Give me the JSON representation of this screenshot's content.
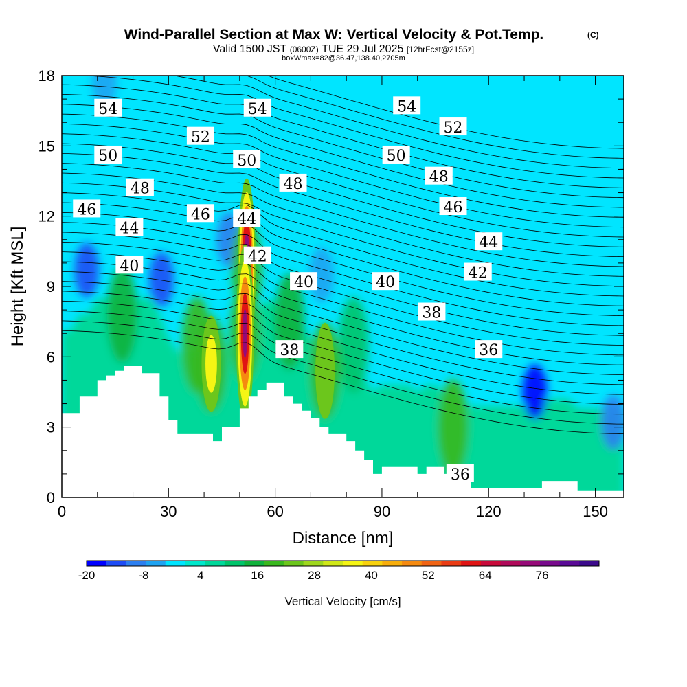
{
  "chart_data": {
    "type": "heatmap",
    "title": "Wind-Parallel Section at Max W: Vertical Velocity & Pot.Temp.",
    "title_mark": "(C)",
    "subtitle_parts": {
      "valid": "Valid 1500 JST",
      "utc": "(0600Z)",
      "date": "TUE 29 Jul 2025",
      "fcst": "[12hrFcst@2155z]"
    },
    "subtitle2": "boxWmax=82@36.47,138.40,2705m",
    "xlabel": "Distance [nm]",
    "ylabel": "Height [Kft MSL]",
    "xlim": [
      0,
      158
    ],
    "ylim": [
      0,
      18
    ],
    "x_ticks": [
      {
        "value": 0,
        "label": "0"
      },
      {
        "value": 30,
        "label": "30"
      },
      {
        "value": 60,
        "label": "60"
      },
      {
        "value": 90,
        "label": "90"
      },
      {
        "value": 120,
        "label": "120"
      },
      {
        "value": 150,
        "label": "150"
      }
    ],
    "y_ticks": [
      {
        "value": 0,
        "label": "0"
      },
      {
        "value": 3,
        "label": "3"
      },
      {
        "value": 6,
        "label": "6"
      },
      {
        "value": 9,
        "label": "9"
      },
      {
        "value": 12,
        "label": "12"
      },
      {
        "value": 15,
        "label": "15"
      },
      {
        "value": 18,
        "label": "18"
      }
    ],
    "colorbar": {
      "label": "Vertical Velocity [cm/s]",
      "min": -20,
      "max": 88,
      "step": 4,
      "tick_labels": [
        "-20",
        "-8",
        "4",
        "16",
        "28",
        "40",
        "52",
        "64",
        "76"
      ],
      "tick_values": [
        -20,
        -8,
        4,
        16,
        28,
        40,
        52,
        64,
        76
      ],
      "colors": [
        "#0000ff",
        "#1e4cf5",
        "#2c7ff0",
        "#1fa3f2",
        "#00e5ff",
        "#00e8cc",
        "#00d89a",
        "#00c46a",
        "#10b23c",
        "#39b81e",
        "#6cc61c",
        "#9fd81e",
        "#d0e818",
        "#f5f514",
        "#f8d20e",
        "#f8ae0c",
        "#f58a10",
        "#f16414",
        "#ea3c14",
        "#e01414",
        "#c80a3a",
        "#b00a5a",
        "#960a78",
        "#780a8c",
        "#5a0a96",
        "#3c0a8c"
      ]
    },
    "vertical_velocity_max": {
      "x": 52,
      "y": 9.8,
      "value": 82
    },
    "updraft_cells": [
      {
        "x": 52,
        "y": 9.8,
        "value": 82
      },
      {
        "x": 51.5,
        "y": 7.0,
        "value": 70
      },
      {
        "x": 42,
        "y": 5.7,
        "value": 40
      },
      {
        "x": 38,
        "y": 6.5,
        "value": 16
      },
      {
        "x": 17,
        "y": 7.8,
        "value": 12
      },
      {
        "x": 74,
        "y": 5.4,
        "value": 20
      },
      {
        "x": 110,
        "y": 3.0,
        "value": 18
      },
      {
        "x": 64,
        "y": 7.5,
        "value": 12
      },
      {
        "x": 82,
        "y": 6.5,
        "value": 10
      }
    ],
    "downdraft_cells": [
      {
        "x": 7,
        "y": 9.7,
        "value": -14
      },
      {
        "x": 28,
        "y": 9.3,
        "value": -14
      },
      {
        "x": 133,
        "y": 4.5,
        "value": -20
      },
      {
        "x": 47,
        "y": 11.0,
        "value": -10
      },
      {
        "x": 12,
        "y": 17.8,
        "value": -8
      },
      {
        "x": 73,
        "y": 9.5,
        "value": -8
      },
      {
        "x": 155,
        "y": 3.2,
        "value": -10
      }
    ],
    "terrain": {
      "x": [
        0,
        2.5,
        5,
        7.5,
        10,
        12.5,
        15,
        17.5,
        20,
        22.5,
        25,
        27.5,
        30,
        32.5,
        35,
        37.5,
        40,
        42.5,
        45,
        47.5,
        50,
        52.5,
        55,
        57.5,
        60,
        62.5,
        65,
        67.5,
        70,
        72.5,
        75,
        77.5,
        80,
        82.5,
        85,
        87.5,
        90,
        92.5,
        95,
        97.5,
        100,
        102.5,
        105,
        107.5,
        110,
        112.5,
        115,
        117.5,
        120,
        122.5,
        125,
        127.5,
        130,
        132.5,
        135,
        137.5,
        140,
        142.5,
        145,
        147.5,
        150,
        152.5,
        155,
        158
      ],
      "height_kft": [
        3.6,
        3.6,
        4.3,
        4.3,
        5.0,
        5.2,
        5.4,
        5.6,
        5.6,
        5.3,
        5.3,
        4.3,
        3.3,
        2.7,
        2.7,
        2.7,
        2.7,
        2.4,
        3.0,
        3.0,
        3.8,
        4.3,
        4.6,
        4.9,
        4.9,
        4.3,
        4.0,
        3.7,
        3.4,
        3.0,
        2.7,
        2.7,
        2.4,
        2.0,
        1.6,
        1.0,
        1.3,
        1.3,
        1.3,
        1.3,
        1.0,
        1.3,
        1.3,
        1.0,
        1.0,
        0.7,
        0.4,
        0.4,
        0.4,
        0.4,
        0.4,
        0.4,
        0.4,
        0.4,
        0.7,
        0.7,
        0.7,
        0.7,
        0.3,
        0.3,
        0.3,
        0.3,
        0.3,
        0.3
      ]
    },
    "theta_contour_labels": [
      {
        "text": "54",
        "x": 13,
        "y": 16.6
      },
      {
        "text": "54",
        "x": 55,
        "y": 16.6
      },
      {
        "text": "54",
        "x": 97,
        "y": 16.7
      },
      {
        "text": "52",
        "x": 39,
        "y": 15.4
      },
      {
        "text": "52",
        "x": 110,
        "y": 15.8
      },
      {
        "text": "50",
        "x": 13,
        "y": 14.6
      },
      {
        "text": "50",
        "x": 52,
        "y": 14.4
      },
      {
        "text": "50",
        "x": 94,
        "y": 14.6
      },
      {
        "text": "48",
        "x": 22,
        "y": 13.2
      },
      {
        "text": "48",
        "x": 65,
        "y": 13.4
      },
      {
        "text": "48",
        "x": 106,
        "y": 13.7
      },
      {
        "text": "46",
        "x": 7,
        "y": 12.3
      },
      {
        "text": "46",
        "x": 39,
        "y": 12.1
      },
      {
        "text": "46",
        "x": 110,
        "y": 12.4
      },
      {
        "text": "44",
        "x": 19,
        "y": 11.5
      },
      {
        "text": "44",
        "x": 52,
        "y": 11.9
      },
      {
        "text": "44",
        "x": 120,
        "y": 10.9
      },
      {
        "text": "42",
        "x": 55,
        "y": 10.3
      },
      {
        "text": "42",
        "x": 117,
        "y": 9.6
      },
      {
        "text": "40",
        "x": 19,
        "y": 9.9
      },
      {
        "text": "40",
        "x": 68,
        "y": 9.2
      },
      {
        "text": "40",
        "x": 91,
        "y": 9.2
      },
      {
        "text": "38",
        "x": 64,
        "y": 6.3
      },
      {
        "text": "38",
        "x": 104,
        "y": 7.9
      },
      {
        "text": "36",
        "x": 120,
        "y": 6.3
      },
      {
        "text": "36",
        "x": 112,
        "y": 1.0
      }
    ]
  }
}
